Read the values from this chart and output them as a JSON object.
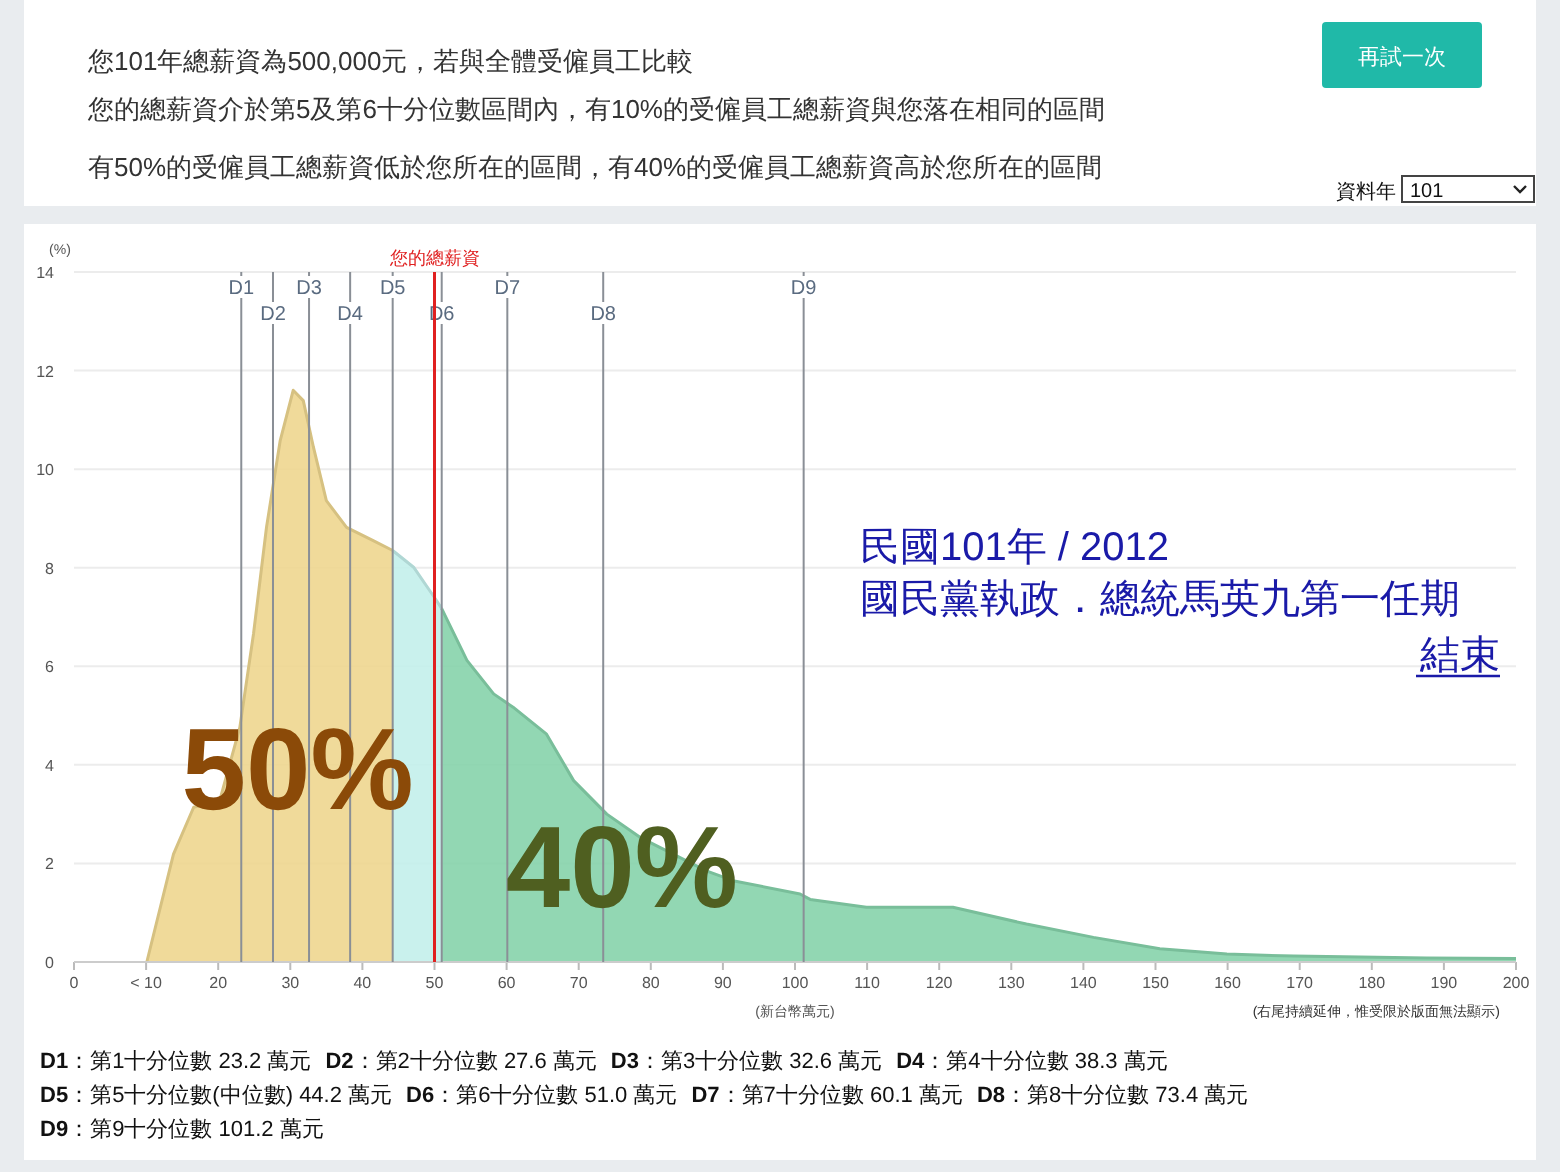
{
  "chart_data": {
    "type": "area",
    "title": "您101年總薪資為500,000元，若與全體受僱員工比較",
    "subtitle": "您的總薪資介於第5及第6十分位數區間內，有10%的受僱員工總薪資與您落在相同的區間",
    "xlabel": "(新台幣萬元)",
    "ylabel": "(%)",
    "xlim": [
      0,
      200
    ],
    "ylim": [
      0,
      14
    ],
    "xticks": [
      0,
      {
        "value": 10,
        "label": "< 10"
      },
      20,
      30,
      40,
      50,
      60,
      70,
      80,
      90,
      100,
      110,
      120,
      130,
      140,
      150,
      160,
      170,
      180,
      190,
      200
    ],
    "yticks": [
      0,
      2,
      4,
      6,
      8,
      10,
      12,
      14
    ],
    "grid": "y",
    "series": [
      {
        "color": "#eed68f",
        "x": [
          10.1,
          13.8,
          16.6,
          20.2,
          23.0,
          24.9,
          26.7,
          28.6,
          30.4,
          31.8,
          33.2,
          35.0,
          37.8,
          41.5,
          44.2
        ],
        "values": [
          0,
          2.19,
          3.14,
          3.27,
          4.76,
          6.66,
          8.82,
          10.58,
          11.6,
          11.39,
          10.45,
          9.36,
          8.82,
          8.55,
          8.35
        ]
      },
      {
        "color": "#c3efeb",
        "x": [
          44.2,
          47.1,
          50.3,
          51.0
        ],
        "values": [
          8.35,
          8.01,
          7.33,
          7.17
        ]
      },
      {
        "color": "#86d3ab",
        "x": [
          51.0,
          54.5,
          58.2,
          60.9,
          65.5,
          69.3,
          73.9,
          78.5,
          83.1,
          87.7,
          91.4,
          100.7,
          102.1,
          109.9,
          121.9,
          132.1,
          141.4,
          150.6,
          159.9,
          169.2,
          187.6,
          200
        ],
        "values": [
          7.17,
          6.12,
          5.44,
          5.17,
          4.63,
          3.68,
          3.0,
          2.53,
          2.19,
          1.85,
          1.65,
          1.38,
          1.27,
          1.11,
          1.11,
          0.77,
          0.5,
          0.27,
          0.16,
          0.12,
          0.08,
          0.07
        ]
      }
    ],
    "ref_lines": [
      {
        "axis": "x",
        "value": 23.2,
        "label": "D1",
        "color": "#8a8f96"
      },
      {
        "axis": "x",
        "value": 27.6,
        "label": "D2",
        "color": "#8a8f96"
      },
      {
        "axis": "x",
        "value": 32.6,
        "label": "D3",
        "color": "#8a8f96"
      },
      {
        "axis": "x",
        "value": 38.3,
        "label": "D4",
        "color": "#8a8f96"
      },
      {
        "axis": "x",
        "value": 44.2,
        "label": "D5",
        "color": "#8a8f96"
      },
      {
        "axis": "x",
        "value": 51.0,
        "label": "D6",
        "color": "#8a8f96"
      },
      {
        "axis": "x",
        "value": 60.1,
        "label": "D7",
        "color": "#8a8f96"
      },
      {
        "axis": "x",
        "value": 73.4,
        "label": "D8",
        "color": "#8a8f96"
      },
      {
        "axis": "x",
        "value": 101.2,
        "label": "D9",
        "color": "#8a8f96"
      },
      {
        "axis": "x",
        "value": 50,
        "label": "您的總薪資",
        "color": "#e02020"
      }
    ],
    "annotations": [
      "有50%的受僱員工總薪資低於您所在的區間，有40%的受僱員工總薪資高於您所在的區間",
      "再試一次",
      "資料年",
      "101",
      "50%",
      "40%",
      "民國101年 / 2012",
      "國民黨執政．總統馬英九第一任期",
      "結束",
      "(右尾持續延伸，惟受限於版面無法顯示)",
      "D1：第1十分位數 23.2 萬元",
      "D2：第2十分位數 27.6 萬元",
      "D3：第3十分位數 32.6 萬元",
      "D4：第4十分位數 38.3 萬元",
      "D5：第5十分位數(中位數) 44.2 萬元",
      "D6：第6十分位數 51.0 萬元",
      "D7：第7十分位數 60.1 萬元",
      "D8：第8十分位數 73.4 萬元",
      "D9：第9十分位數 101.2 萬元"
    ]
  }
}
